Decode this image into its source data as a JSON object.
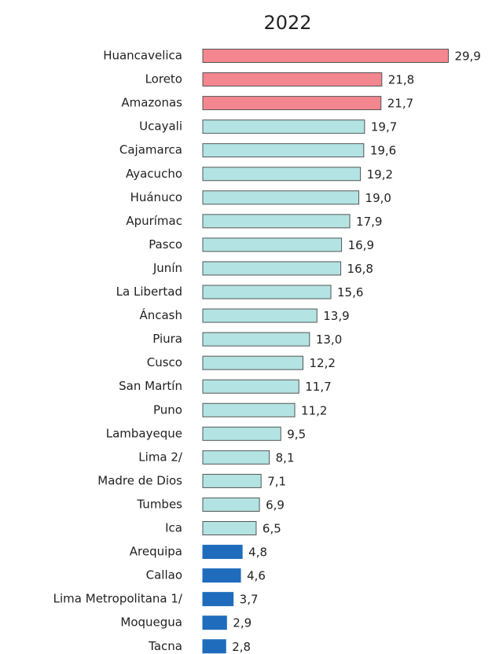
{
  "chart_data": {
    "type": "bar",
    "orientation": "horizontal",
    "title": "2022",
    "categories": [
      "Huancavelica",
      "Loreto",
      "Amazonas",
      "Ucayali",
      "Cajamarca",
      "Ayacucho",
      "Huánuco",
      "Apurímac",
      "Pasco",
      "Junín",
      "La Libertad",
      "Áncash",
      "Piura",
      "Cusco",
      "San Martín",
      "Puno",
      "Lambayeque",
      "Lima 2/",
      "Madre de Dios",
      "Tumbes",
      "Ica",
      "Arequipa",
      "Callao",
      "Lima Metropolitana 1/",
      "Moquegua",
      "Tacna"
    ],
    "values": [
      29.9,
      21.8,
      21.7,
      19.7,
      19.6,
      19.2,
      19.0,
      17.9,
      16.9,
      16.8,
      15.6,
      13.9,
      13.0,
      12.2,
      11.7,
      11.2,
      9.5,
      8.1,
      7.1,
      6.9,
      6.5,
      4.8,
      4.6,
      3.7,
      2.9,
      2.8
    ],
    "value_labels": [
      "29,9",
      "21,8",
      "21,7",
      "19,7",
      "19,6",
      "19,2",
      "19,0",
      "17,9",
      "16,9",
      "16,8",
      "15,6",
      "13,9",
      "13,0",
      "12,2",
      "11,7",
      "11,2",
      "9,5",
      "8,1",
      "7,1",
      "6,9",
      "6,5",
      "4,8",
      "4,6",
      "3,7",
      "2,9",
      "2,8"
    ],
    "colors": [
      "#f4868f",
      "#f4868f",
      "#f4868f",
      "#b3e3e3",
      "#b3e3e3",
      "#b3e3e3",
      "#b3e3e3",
      "#b3e3e3",
      "#b3e3e3",
      "#b3e3e3",
      "#b3e3e3",
      "#b3e3e3",
      "#b3e3e3",
      "#b3e3e3",
      "#b3e3e3",
      "#b3e3e3",
      "#b3e3e3",
      "#b3e3e3",
      "#b3e3e3",
      "#b3e3e3",
      "#b3e3e3",
      "#1f6cbd",
      "#1f6cbd",
      "#1f6cbd",
      "#1f6cbd",
      "#1f6cbd"
    ]
  }
}
